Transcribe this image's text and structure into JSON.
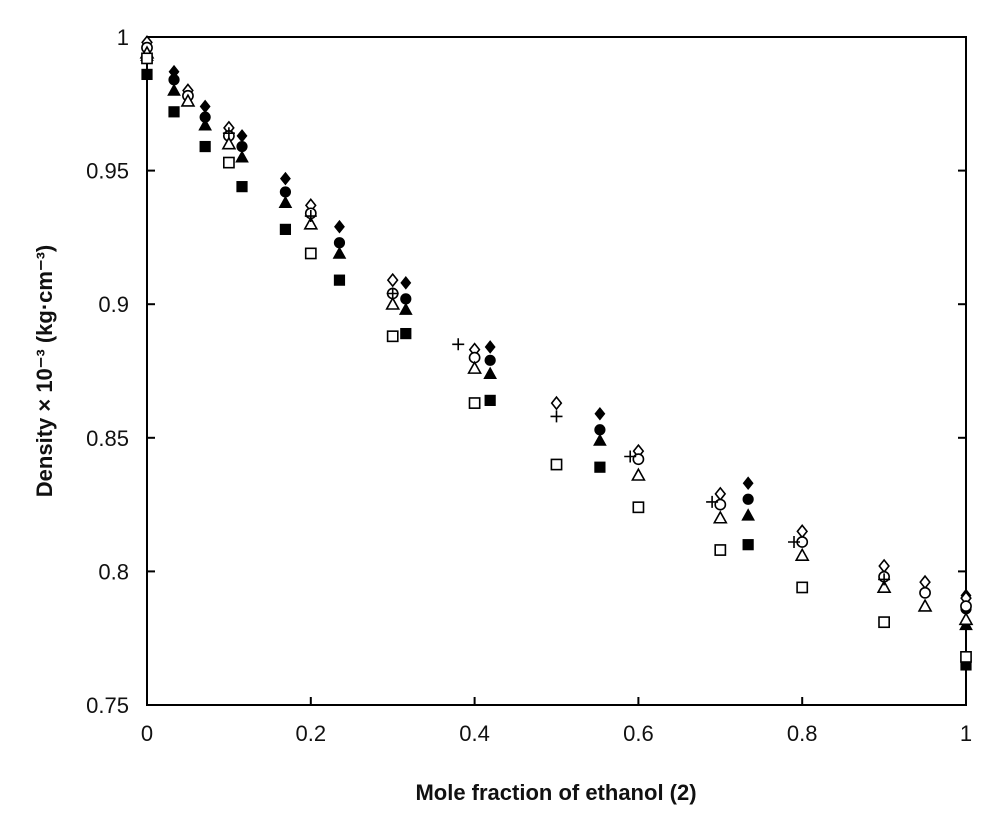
{
  "chart_data": {
    "type": "scatter",
    "xlabel": "Mole fraction of ethanol (2)",
    "ylabel": "Density × 10⁻³ (kg·cm⁻³)",
    "xlim": [
      0,
      1
    ],
    "ylim": [
      0.75,
      1.0
    ],
    "x_ticks": [
      "0",
      "0.2",
      "0.4",
      "0.6",
      "0.8",
      "1"
    ],
    "y_ticks": [
      "0.75",
      "0.8",
      "0.85",
      "0.9",
      "0.95",
      "1"
    ],
    "grid": false,
    "legend": "none",
    "series": [
      {
        "marker": "filled-diamond",
        "points": [
          [
            0,
            0.998
          ],
          [
            0.033,
            0.987
          ],
          [
            0.071,
            0.974
          ],
          [
            0.116,
            0.963
          ],
          [
            0.169,
            0.947
          ],
          [
            0.235,
            0.929
          ],
          [
            0.316,
            0.908
          ],
          [
            0.419,
            0.884
          ],
          [
            0.553,
            0.859
          ],
          [
            0.734,
            0.833
          ],
          [
            1.0,
            0.791
          ]
        ]
      },
      {
        "marker": "filled-circle",
        "points": [
          [
            0,
            0.996
          ],
          [
            0.033,
            0.984
          ],
          [
            0.071,
            0.97
          ],
          [
            0.116,
            0.959
          ],
          [
            0.169,
            0.942
          ],
          [
            0.235,
            0.923
          ],
          [
            0.316,
            0.902
          ],
          [
            0.419,
            0.879
          ],
          [
            0.553,
            0.853
          ],
          [
            0.734,
            0.827
          ],
          [
            1.0,
            0.786
          ]
        ]
      },
      {
        "marker": "filled-triangle",
        "points": [
          [
            0,
            0.993
          ],
          [
            0.033,
            0.98
          ],
          [
            0.071,
            0.967
          ],
          [
            0.116,
            0.955
          ],
          [
            0.169,
            0.938
          ],
          [
            0.235,
            0.919
          ],
          [
            0.316,
            0.898
          ],
          [
            0.419,
            0.874
          ],
          [
            0.553,
            0.849
          ],
          [
            0.734,
            0.821
          ],
          [
            1.0,
            0.78
          ]
        ]
      },
      {
        "marker": "filled-square",
        "points": [
          [
            0,
            0.986
          ],
          [
            0.033,
            0.972
          ],
          [
            0.071,
            0.959
          ],
          [
            0.116,
            0.944
          ],
          [
            0.169,
            0.928
          ],
          [
            0.235,
            0.909
          ],
          [
            0.316,
            0.889
          ],
          [
            0.419,
            0.864
          ],
          [
            0.553,
            0.839
          ],
          [
            0.734,
            0.81
          ],
          [
            1.0,
            0.765
          ]
        ]
      },
      {
        "marker": "open-diamond",
        "points": [
          [
            0,
            0.998
          ],
          [
            0.05,
            0.98
          ],
          [
            0.1,
            0.966
          ],
          [
            0.2,
            0.937
          ],
          [
            0.3,
            0.909
          ],
          [
            0.4,
            0.883
          ],
          [
            0.5,
            0.863
          ],
          [
            0.6,
            0.845
          ],
          [
            0.7,
            0.829
          ],
          [
            0.8,
            0.815
          ],
          [
            0.9,
            0.802
          ],
          [
            0.95,
            0.796
          ],
          [
            1.0,
            0.79
          ]
        ]
      },
      {
        "marker": "open-circle",
        "points": [
          [
            0,
            0.996
          ],
          [
            0.05,
            0.978
          ],
          [
            0.1,
            0.963
          ],
          [
            0.2,
            0.934
          ],
          [
            0.3,
            0.904
          ],
          [
            0.4,
            0.88
          ],
          [
            0.6,
            0.842
          ],
          [
            0.7,
            0.825
          ],
          [
            0.8,
            0.811
          ],
          [
            0.9,
            0.798
          ],
          [
            0.95,
            0.792
          ],
          [
            1.0,
            0.787
          ]
        ]
      },
      {
        "marker": "open-triangle",
        "points": [
          [
            0,
            0.994
          ],
          [
            0.05,
            0.976
          ],
          [
            0.1,
            0.96
          ],
          [
            0.2,
            0.93
          ],
          [
            0.3,
            0.9
          ],
          [
            0.4,
            0.876
          ],
          [
            0.6,
            0.836
          ],
          [
            0.7,
            0.82
          ],
          [
            0.8,
            0.806
          ],
          [
            0.9,
            0.794
          ],
          [
            0.95,
            0.787
          ],
          [
            1.0,
            0.782
          ]
        ]
      },
      {
        "marker": "open-square",
        "points": [
          [
            0,
            0.992
          ],
          [
            0.1,
            0.953
          ],
          [
            0.2,
            0.919
          ],
          [
            0.3,
            0.888
          ],
          [
            0.4,
            0.863
          ],
          [
            0.5,
            0.84
          ],
          [
            0.6,
            0.824
          ],
          [
            0.7,
            0.808
          ],
          [
            0.8,
            0.794
          ],
          [
            0.9,
            0.781
          ],
          [
            1.0,
            0.768
          ]
        ]
      },
      {
        "marker": "plus",
        "points": [
          [
            0.1,
            0.964
          ],
          [
            0.2,
            0.933
          ],
          [
            0.3,
            0.904
          ],
          [
            0.38,
            0.885
          ],
          [
            0.5,
            0.858
          ],
          [
            0.59,
            0.843
          ],
          [
            0.69,
            0.826
          ],
          [
            0.79,
            0.811
          ],
          [
            0.9,
            0.797
          ]
        ]
      }
    ]
  }
}
